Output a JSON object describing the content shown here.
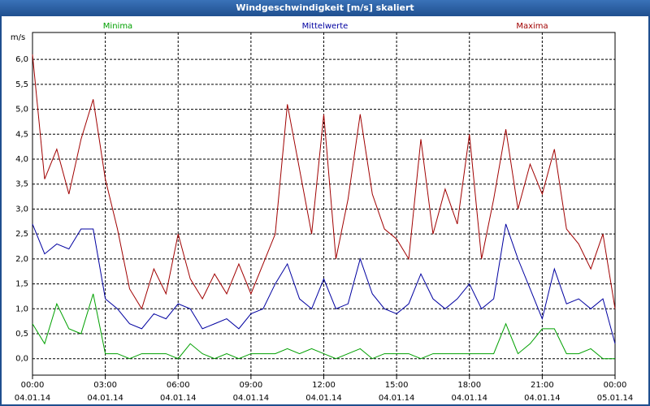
{
  "chart_data": {
    "type": "line",
    "title": "Windgeschwindigkeit [m/s] skaliert",
    "y_label": "m/s",
    "x": [
      0,
      0.5,
      1,
      1.5,
      2,
      2.5,
      3,
      3.5,
      4,
      4.5,
      5,
      5.5,
      6,
      6.5,
      7,
      7.5,
      8,
      8.5,
      9,
      9.5,
      10,
      10.5,
      11,
      11.5,
      12,
      12.5,
      13,
      13.5,
      14,
      14.5,
      15,
      15.5,
      16,
      16.5,
      17,
      17.5,
      18,
      18.5,
      19,
      19.5,
      20,
      20.5,
      21,
      21.5,
      22,
      22.5,
      23,
      23.5,
      24
    ],
    "series": [
      {
        "name": "Minima",
        "color": "#00a000",
        "values": [
          0.7,
          0.3,
          1.1,
          0.6,
          0.5,
          1.3,
          0.1,
          0.1,
          0.0,
          0.1,
          0.1,
          0.1,
          0.0,
          0.3,
          0.1,
          0.0,
          0.1,
          0.0,
          0.1,
          0.1,
          0.1,
          0.2,
          0.1,
          0.2,
          0.1,
          0.0,
          0.1,
          0.2,
          0.0,
          0.1,
          0.1,
          0.1,
          0.0,
          0.1,
          0.1,
          0.1,
          0.1,
          0.1,
          0.1,
          0.7,
          0.1,
          0.3,
          0.6,
          0.6,
          0.1,
          0.1,
          0.2,
          0.0,
          0.0
        ]
      },
      {
        "name": "Mittelwerte",
        "color": "#0000a0",
        "values": [
          2.7,
          2.1,
          2.3,
          2.2,
          2.6,
          2.6,
          1.2,
          1.0,
          0.7,
          0.6,
          0.9,
          0.8,
          1.1,
          1.0,
          0.6,
          0.7,
          0.8,
          0.6,
          0.9,
          1.0,
          1.5,
          1.9,
          1.2,
          1.0,
          1.6,
          1.0,
          1.1,
          2.0,
          1.3,
          1.0,
          0.9,
          1.1,
          1.7,
          1.2,
          1.0,
          1.2,
          1.5,
          1.0,
          1.2,
          2.7,
          2.0,
          1.4,
          0.8,
          1.8,
          1.1,
          1.2,
          1.0,
          1.2,
          0.3
        ]
      },
      {
        "name": "Maxima",
        "color": "#a00000",
        "values": [
          6.1,
          3.6,
          4.2,
          3.3,
          4.4,
          5.2,
          3.6,
          2.6,
          1.4,
          1.0,
          1.8,
          1.3,
          2.5,
          1.6,
          1.2,
          1.7,
          1.3,
          1.9,
          1.3,
          1.9,
          2.5,
          5.1,
          3.8,
          2.5,
          4.9,
          2.0,
          3.2,
          4.9,
          3.3,
          2.6,
          2.4,
          2.0,
          4.4,
          2.5,
          3.4,
          2.7,
          4.5,
          2.0,
          3.2,
          4.6,
          3.0,
          3.9,
          3.3,
          4.2,
          2.6,
          2.3,
          1.8,
          2.5,
          1.0
        ]
      }
    ],
    "xlim": [
      0,
      24
    ],
    "ylim": [
      -0.33,
      6.54
    ],
    "xticks": [
      {
        "value": 0,
        "label": "00:00",
        "date": "04.01.14"
      },
      {
        "value": 3,
        "label": "03:00",
        "date": "04.01.14"
      },
      {
        "value": 6,
        "label": "06:00",
        "date": "04.01.14"
      },
      {
        "value": 9,
        "label": "09:00",
        "date": "04.01.14"
      },
      {
        "value": 12,
        "label": "12:00",
        "date": "04.01.14"
      },
      {
        "value": 15,
        "label": "15:00",
        "date": "04.01.14"
      },
      {
        "value": 18,
        "label": "18:00",
        "date": "04.01.14"
      },
      {
        "value": 21,
        "label": "21:00",
        "date": "04.01.14"
      },
      {
        "value": 24,
        "label": "00:00",
        "date": "05.01.14"
      }
    ],
    "yticks": [
      {
        "value": 0,
        "label": "0,0"
      },
      {
        "value": 0.5,
        "label": "0,5"
      },
      {
        "value": 1,
        "label": "1,0"
      },
      {
        "value": 1.5,
        "label": "1,5"
      },
      {
        "value": 2,
        "label": "2,0"
      },
      {
        "value": 2.5,
        "label": "2,5"
      },
      {
        "value": 3,
        "label": "3,0"
      },
      {
        "value": 3.5,
        "label": "3,5"
      },
      {
        "value": 4,
        "label": "4,0"
      },
      {
        "value": 4.5,
        "label": "4,5"
      },
      {
        "value": 5,
        "label": "5,0"
      },
      {
        "value": 5.5,
        "label": "5,5"
      },
      {
        "value": 6,
        "label": "6,0"
      }
    ],
    "grid": true
  }
}
